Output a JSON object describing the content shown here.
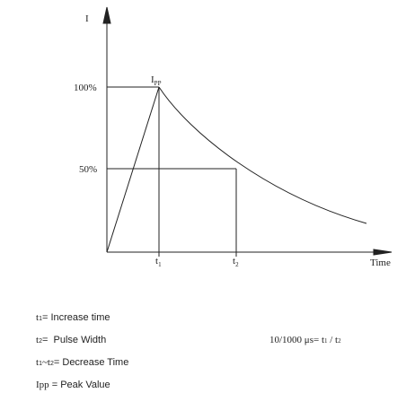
{
  "axis": {
    "y_label": "I",
    "x_label": "Time",
    "level_100": "100%",
    "level_50": "50%"
  },
  "peak": [
    "I",
    "PP"
  ],
  "t1": [
    "t",
    "1"
  ],
  "t2": [
    "t",
    "2"
  ],
  "notes": [
    [
      "t",
      "1",
      "= Increase time"
    ],
    [
      "t",
      "2",
      "=  Pulse Width"
    ],
    [
      "t",
      "1",
      "~",
      "t",
      "2",
      "= Decrease Time"
    ],
    [
      "Ipp",
      " = Peak Value"
    ]
  ],
  "formula": [
    "10/1000 μs= t",
    "1",
    " / t",
    "2"
  ]
}
